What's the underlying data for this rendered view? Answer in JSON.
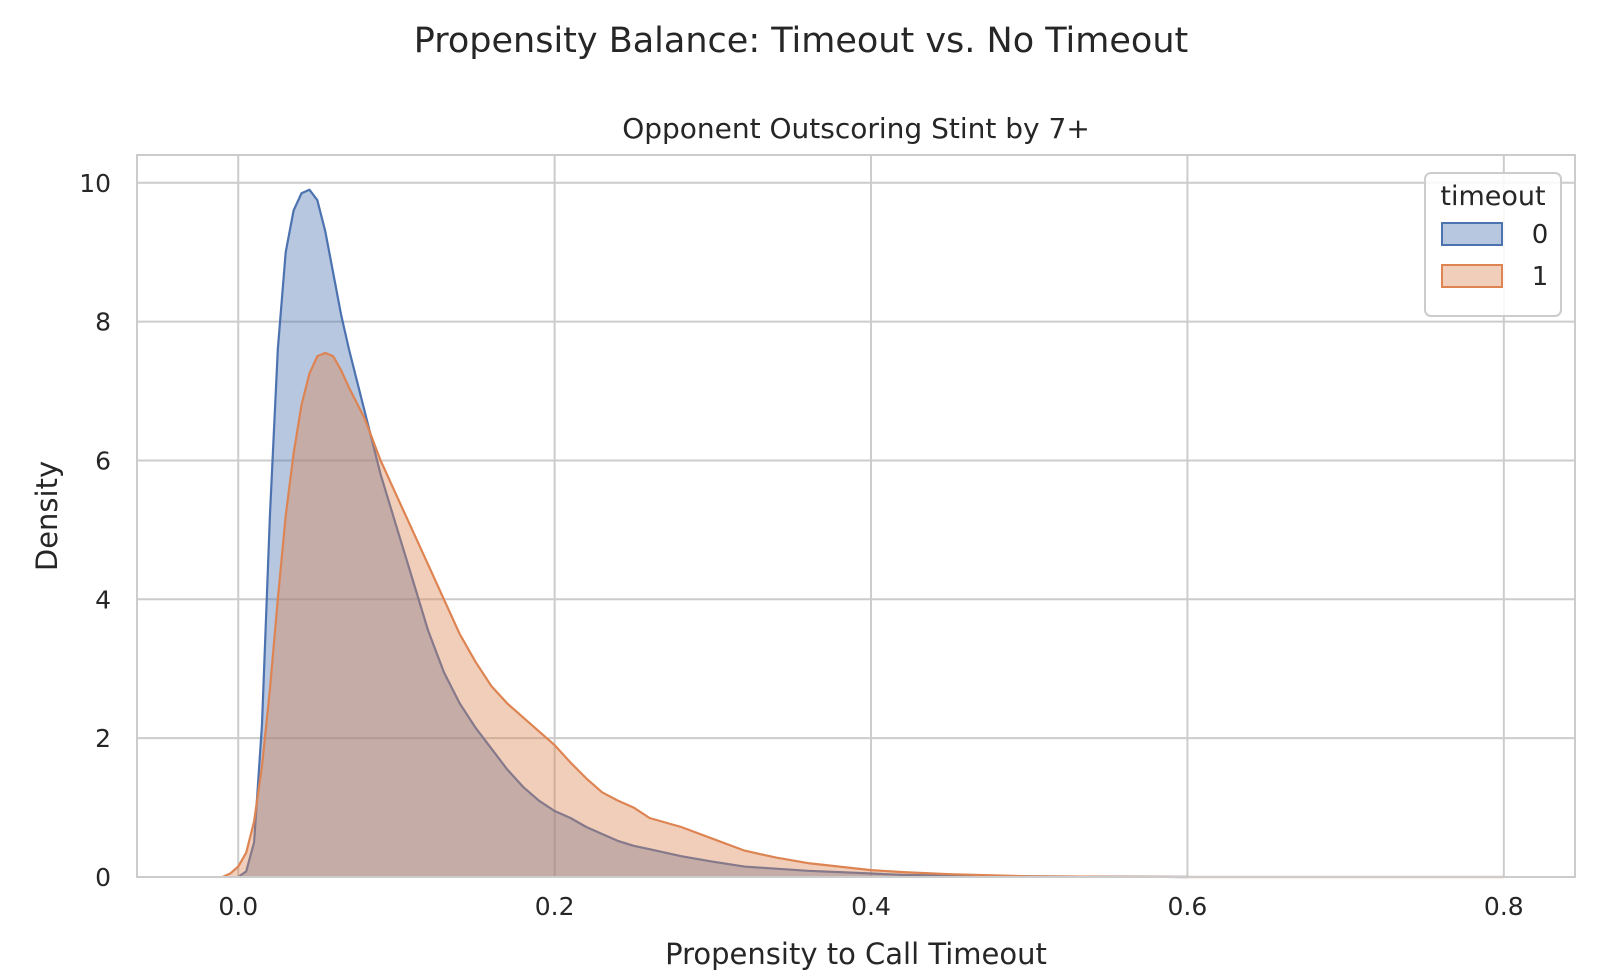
{
  "chart_data": {
    "type": "area",
    "title": "Propensity Balance: Timeout vs. No Timeout",
    "subtitle": "Opponent Outscoring Stint by 7+",
    "xlabel": "Propensity to Call Timeout",
    "ylabel": "Density",
    "xlim": [
      -0.064,
      0.845
    ],
    "ylim": [
      0,
      10.4
    ],
    "xticks": [
      0.0,
      0.2,
      0.4,
      0.6,
      0.8
    ],
    "xtick_labels": [
      "0.0",
      "0.2",
      "0.4",
      "0.6",
      "0.8"
    ],
    "yticks": [
      0,
      2,
      4,
      6,
      8,
      10
    ],
    "ytick_labels": [
      "0",
      "2",
      "4",
      "6",
      "8",
      "10"
    ],
    "grid": true,
    "legend": {
      "title": "timeout",
      "placement": "top-right"
    },
    "series": [
      {
        "name": "0",
        "color": "#4c72b0",
        "fill_opacity": 0.4,
        "x": [
          0.0,
          0.005,
          0.01,
          0.015,
          0.02,
          0.025,
          0.03,
          0.035,
          0.04,
          0.045,
          0.05,
          0.055,
          0.06,
          0.065,
          0.07,
          0.08,
          0.09,
          0.1,
          0.11,
          0.12,
          0.13,
          0.14,
          0.15,
          0.16,
          0.17,
          0.18,
          0.19,
          0.2,
          0.21,
          0.22,
          0.23,
          0.24,
          0.25,
          0.26,
          0.28,
          0.3,
          0.32,
          0.34,
          0.36,
          0.38,
          0.4,
          0.42,
          0.45,
          0.5,
          0.55,
          0.6
        ],
        "y": [
          0.0,
          0.08,
          0.5,
          2.2,
          5.2,
          7.6,
          9.0,
          9.6,
          9.85,
          9.9,
          9.75,
          9.3,
          8.7,
          8.1,
          7.6,
          6.7,
          5.8,
          5.05,
          4.3,
          3.55,
          2.95,
          2.5,
          2.15,
          1.85,
          1.55,
          1.3,
          1.1,
          0.95,
          0.85,
          0.72,
          0.62,
          0.52,
          0.45,
          0.4,
          0.3,
          0.22,
          0.15,
          0.12,
          0.09,
          0.07,
          0.05,
          0.03,
          0.02,
          0.01,
          0.005,
          0.0
        ]
      },
      {
        "name": "1",
        "color": "#dd8452",
        "fill_opacity": 0.4,
        "x": [
          -0.01,
          -0.005,
          0.0,
          0.005,
          0.01,
          0.015,
          0.02,
          0.025,
          0.03,
          0.035,
          0.04,
          0.045,
          0.05,
          0.055,
          0.06,
          0.065,
          0.07,
          0.08,
          0.09,
          0.1,
          0.11,
          0.12,
          0.13,
          0.14,
          0.15,
          0.16,
          0.17,
          0.18,
          0.19,
          0.2,
          0.21,
          0.22,
          0.23,
          0.24,
          0.25,
          0.26,
          0.28,
          0.3,
          0.32,
          0.34,
          0.36,
          0.38,
          0.4,
          0.42,
          0.45,
          0.5,
          0.55,
          0.6,
          0.7,
          0.8
        ],
        "y": [
          0.0,
          0.05,
          0.15,
          0.35,
          0.8,
          1.6,
          2.7,
          4.0,
          5.2,
          6.1,
          6.8,
          7.25,
          7.5,
          7.55,
          7.5,
          7.3,
          7.05,
          6.6,
          6.0,
          5.5,
          5.0,
          4.5,
          4.0,
          3.5,
          3.1,
          2.75,
          2.5,
          2.3,
          2.1,
          1.9,
          1.65,
          1.42,
          1.22,
          1.1,
          1.0,
          0.85,
          0.72,
          0.55,
          0.38,
          0.28,
          0.2,
          0.15,
          0.1,
          0.07,
          0.04,
          0.01,
          0.005,
          0.0,
          0.0,
          0.0
        ]
      }
    ]
  }
}
